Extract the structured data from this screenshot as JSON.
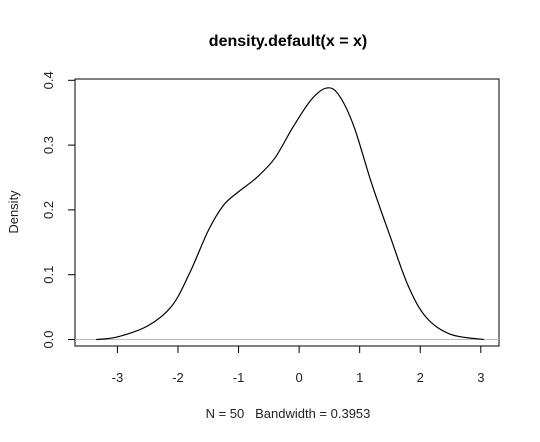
{
  "chart_data": {
    "type": "line",
    "title": "density.default(x = x)",
    "xlabel": "N = 50   Bandwidth = 0.3953",
    "ylabel": "Density",
    "xlim": [
      -3.7,
      3.3
    ],
    "ylim": [
      -0.01,
      0.402
    ],
    "x_ticks": [
      -3,
      -2,
      -1,
      0,
      1,
      2,
      3
    ],
    "y_ticks": [
      0.0,
      0.1,
      0.2,
      0.3,
      0.4
    ],
    "x_tick_labels": [
      "-3",
      "-2",
      "-1",
      "0",
      "1",
      "2",
      "3"
    ],
    "y_tick_labels": [
      "0.0",
      "0.1",
      "0.2",
      "0.3",
      "0.4"
    ],
    "grid": false,
    "baseline": 0.0,
    "series": [
      {
        "color": "#000000",
        "x": [
          -3.35,
          -3.0,
          -2.5,
          -2.1,
          -1.8,
          -1.5,
          -1.25,
          -1.0,
          -0.7,
          -0.4,
          -0.1,
          0.2,
          0.45,
          0.65,
          0.9,
          1.2,
          1.5,
          1.8,
          2.1,
          2.5,
          3.05
        ],
        "y": [
          0.0,
          0.004,
          0.021,
          0.052,
          0.104,
          0.168,
          0.207,
          0.228,
          0.25,
          0.28,
          0.328,
          0.37,
          0.388,
          0.378,
          0.33,
          0.24,
          0.16,
          0.083,
          0.034,
          0.008,
          0.0
        ]
      }
    ]
  }
}
